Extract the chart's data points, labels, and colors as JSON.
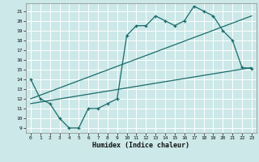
{
  "title": "",
  "xlabel": "Humidex (Indice chaleur)",
  "bg_color": "#cce8e8",
  "grid_color": "#ffffff",
  "line_color": "#1a6b6b",
  "xlim": [
    -0.5,
    23.5
  ],
  "ylim": [
    8.5,
    21.8
  ],
  "xticks": [
    0,
    1,
    2,
    3,
    4,
    5,
    6,
    7,
    8,
    9,
    10,
    11,
    12,
    13,
    14,
    15,
    16,
    17,
    18,
    19,
    20,
    21,
    22,
    23
  ],
  "yticks": [
    9,
    10,
    11,
    12,
    13,
    14,
    15,
    16,
    17,
    18,
    19,
    20,
    21
  ],
  "line1_x": [
    0,
    1,
    2,
    3,
    4,
    5,
    6,
    7,
    8,
    9,
    10,
    11,
    12,
    13,
    14,
    15,
    16,
    17,
    18,
    19,
    20,
    21,
    22,
    23
  ],
  "line1_y": [
    14,
    12,
    11.5,
    10,
    9,
    9,
    11,
    11,
    11.5,
    12,
    18.5,
    19.5,
    19.5,
    20.5,
    20,
    19.5,
    20,
    21.5,
    21,
    20.5,
    19,
    18,
    15.2,
    15.1
  ],
  "line2_x": [
    0,
    23
  ],
  "line2_y": [
    11.5,
    15.2
  ],
  "line3_x": [
    0,
    23
  ],
  "line3_y": [
    12.0,
    20.5
  ]
}
